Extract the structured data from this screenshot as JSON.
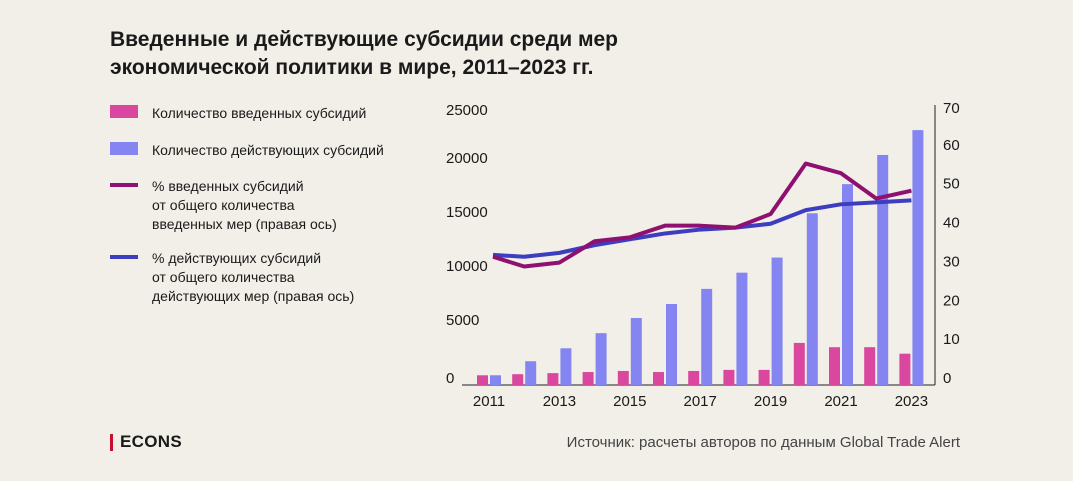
{
  "title": {
    "line1": "Введенные и действующие субсидии среди мер",
    "line2": "экономической политики в мире, 2011–2023 гг."
  },
  "legend": {
    "introduced_count": "Количество введенных субсидий",
    "active_count": "Количество действующих субсидий",
    "introduced_pct": [
      "% введенных субсидий",
      "от общего количества",
      "введенных мер (правая ось)"
    ],
    "active_pct": [
      "% действующих субсидий",
      "от общего количества",
      "действующих мер (правая ось)"
    ]
  },
  "brand": "ECONS",
  "source": "Источник: расчеты авторов по данным Global Trade Alert",
  "colors": {
    "background": "#f1efe7",
    "introduced_bar": "#d9479e",
    "active_bar": "#8485f0",
    "introduced_line": "#8e1070",
    "active_line": "#3d3dbf",
    "brand_bar": "#c8102e"
  },
  "chart_data": {
    "type": "bar",
    "x": [
      2011,
      2012,
      2013,
      2014,
      2015,
      2016,
      2017,
      2018,
      2019,
      2020,
      2021,
      2022,
      2023
    ],
    "xticks": [
      "2011",
      "2013",
      "2015",
      "2017",
      "2019",
      "2021",
      "2023"
    ],
    "y_left_ticks": [
      "0",
      "5000",
      "10000",
      "15000",
      "20000",
      "25000"
    ],
    "y_left_range": [
      0,
      25000
    ],
    "y_right_ticks": [
      "0",
      "10",
      "20",
      "30",
      "40",
      "50",
      "60",
      "70"
    ],
    "y_right_range": [
      0,
      70
    ],
    "series": [
      {
        "name": "Количество введенных субсидий",
        "kind": "bar",
        "axis": "left",
        "values": [
          900,
          1000,
          1100,
          1200,
          1300,
          1200,
          1300,
          1400,
          1400,
          3900,
          3500,
          3500,
          2900
        ]
      },
      {
        "name": "Количество действующих субсидий",
        "kind": "bar",
        "axis": "left",
        "values": [
          900,
          2200,
          3400,
          4800,
          6200,
          7500,
          8900,
          10400,
          11800,
          15900,
          18600,
          21300,
          23600
        ]
      },
      {
        "name": "% введенных субсидий от общего количества введенных мер (правая ось)",
        "kind": "line",
        "axis": "right",
        "values": [
          33,
          30.5,
          31.5,
          37,
          38,
          41,
          41,
          40.5,
          44,
          57,
          54.5,
          48,
          50
        ]
      },
      {
        "name": "% действующих субсидий от общего количества действующих мер (правая ось)",
        "kind": "line",
        "axis": "right",
        "values": [
          33.5,
          33,
          34,
          36,
          37.5,
          39,
          40,
          40.5,
          41.5,
          45,
          46.5,
          47,
          47.5
        ]
      }
    ],
    "grid": false
  }
}
